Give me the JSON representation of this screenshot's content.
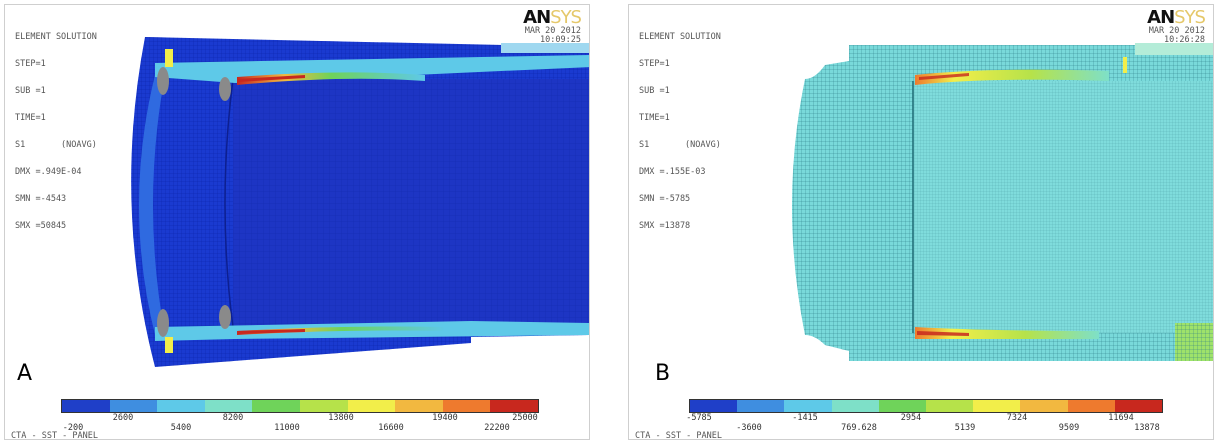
{
  "panel_a": {
    "letter": "A",
    "info": [
      "ELEMENT SOLUTION",
      "",
      "STEP=1",
      "SUB =1",
      "TIME=1",
      "S1       (NOAVG)",
      "DMX =.949E-04",
      "SMN =-4543",
      "SMX =50845"
    ],
    "brand_dark": "AN",
    "brand_light": "SYS",
    "date": "MAR 20 2012",
    "time": "10:09:25",
    "legend_ticks_low": [
      "-200",
      "5400",
      "11000",
      "16600",
      "22200"
    ],
    "legend_ticks_high": [
      "2600",
      "8200",
      "13800",
      "19400",
      "25000"
    ],
    "footer": "CTA - SST - PANEL"
  },
  "panel_b": {
    "letter": "B",
    "info": [
      "ELEMENT SOLUTION",
      "",
      "STEP=1",
      "SUB =1",
      "TIME=1",
      "S1       (NOAVG)",
      "DMX =.155E-03",
      "SMN =-5785",
      "SMX =13878"
    ],
    "brand_dark": "AN",
    "brand_light": "SYS",
    "date": "MAR 20 2012",
    "time": "10:26:28",
    "legend_ticks_low": [
      "-5785",
      "-1415",
      "2954",
      "7324",
      "11694"
    ],
    "legend_ticks_high": [
      "-3600",
      "769.628",
      "5139",
      "9509",
      "13878"
    ],
    "footer": "CTA - SST - PANEL"
  },
  "legend_colors": [
    "#1f3fc8",
    "#3f8ee0",
    "#5ec9e8",
    "#7ee0c8",
    "#6fd35a",
    "#b6e24a",
    "#f2ee4a",
    "#f2b840",
    "#ee7a2e",
    "#c8281e"
  ]
}
